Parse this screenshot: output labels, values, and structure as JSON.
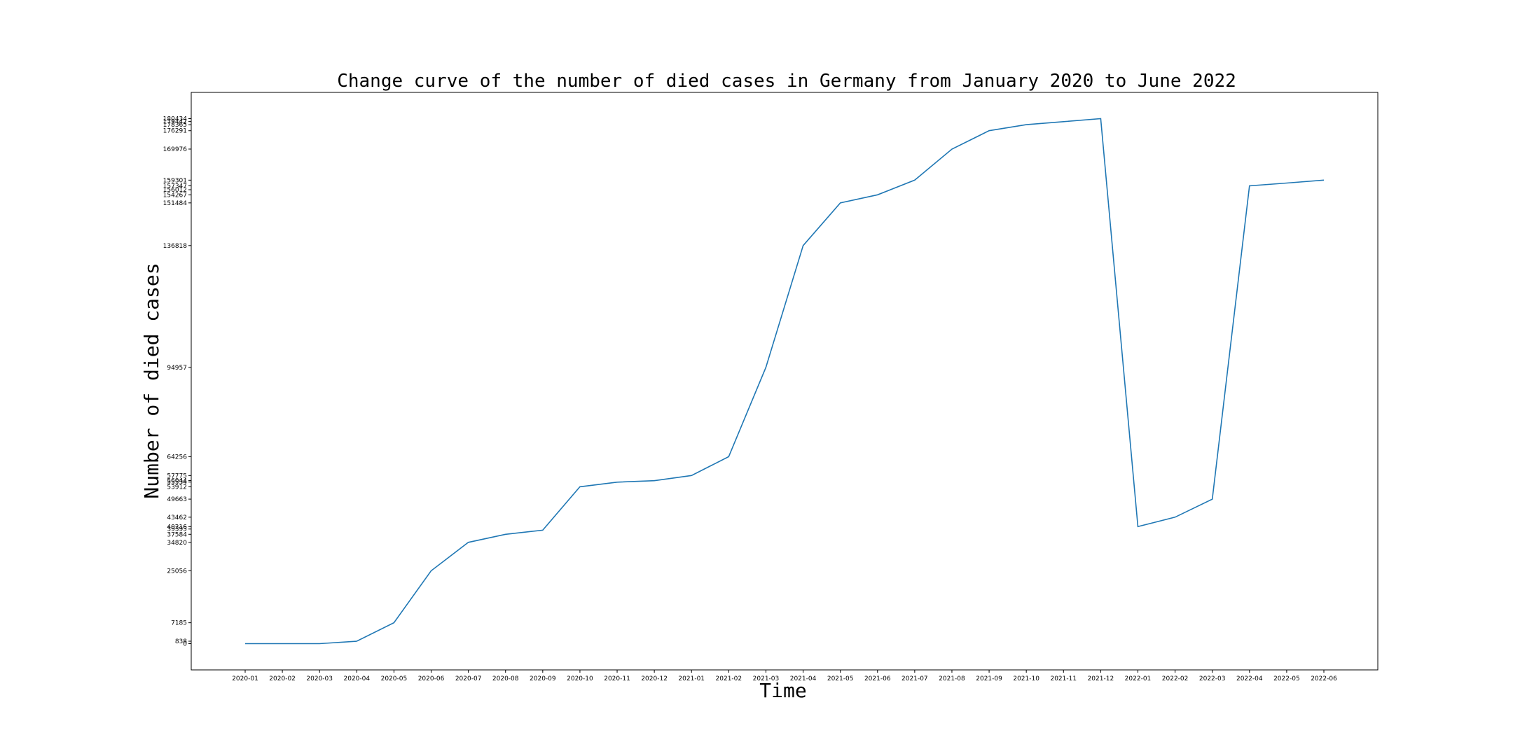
{
  "chart_data": {
    "type": "line",
    "title": "Change curve of the number of died cases in Germany from January 2020 to June 2022",
    "xlabel": "Time",
    "ylabel": "Number of died cases",
    "grid": false,
    "legend": "none",
    "series_color": "#1f77b4",
    "categories": [
      "2020-01",
      "2020-02",
      "2020-03",
      "2020-04",
      "2020-05",
      "2020-06",
      "2020-07",
      "2020-08",
      "2020-09",
      "2020-10",
      "2020-11",
      "2020-12",
      "2021-01",
      "2021-02",
      "2021-03",
      "2021-04",
      "2021-05",
      "2021-06",
      "2021-07",
      "2021-08",
      "2021-09",
      "2021-10",
      "2021-11",
      "2021-12",
      "2022-01",
      "2022-02",
      "2022-03",
      "2022-04",
      "2022-05",
      "2022-06"
    ],
    "series": [
      {
        "values": [
          0,
          0,
          0,
          838,
          7185,
          25056,
          34820,
          37584,
          39000,
          53912,
          55500,
          56000,
          57775,
          64256,
          94957,
          136818,
          151484,
          154267,
          159301,
          169976,
          176291,
          178365,
          179400,
          180434,
          40216,
          43462,
          49663,
          157347,
          158300,
          159301
        ]
      }
    ],
    "y_ticks": [
      0,
      838,
      7185,
      25056,
      34820,
      37584,
      39395,
      40216,
      43462,
      49663,
      53912,
      55534,
      56044,
      57775,
      64256,
      94957,
      136818,
      151484,
      154267,
      156012,
      157347,
      159301,
      169976,
      176291,
      178365,
      179442,
      180434
    ],
    "ylim": [
      -9022,
      189456
    ]
  }
}
